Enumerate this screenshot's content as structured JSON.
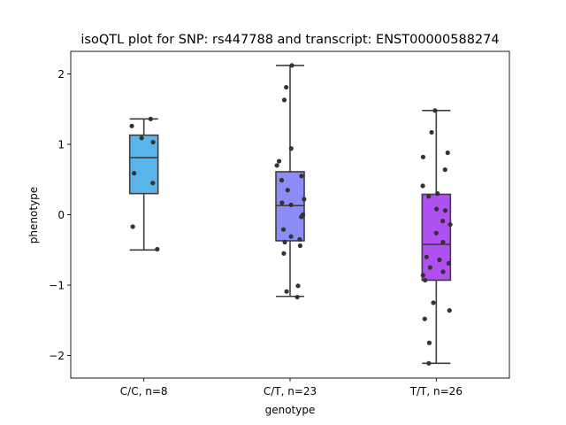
{
  "chart_data": {
    "type": "box",
    "title": "isoQTL plot for SNP: rs447788 and transcript: ENST00000588274",
    "xlabel": "genotype",
    "ylabel": "phenotype",
    "ylim": [
      -2.32,
      2.32
    ],
    "yticks": [
      {
        "value": 2,
        "label": "2"
      },
      {
        "value": 1,
        "label": "1"
      },
      {
        "value": 0,
        "label": "0"
      },
      {
        "value": -1,
        "label": "−1"
      },
      {
        "value": -2,
        "label": "−2"
      }
    ],
    "categories": [
      "C/C, n=8",
      "C/T, n=23",
      "T/T, n=26"
    ],
    "boxes": [
      {
        "color": "#5ab4ec",
        "whisker_low": -0.5,
        "q1": 0.3,
        "median": 0.81,
        "q3": 1.13,
        "whisker_high": 1.36,
        "points": [
          1.36,
          1.26,
          1.09,
          1.03,
          0.59,
          0.45,
          -0.17,
          -0.49
        ]
      },
      {
        "color": "#8c8cf6",
        "whisker_low": -1.16,
        "q1": -0.37,
        "median": 0.13,
        "q3": 0.61,
        "whisker_high": 2.12,
        "points": [
          2.12,
          1.81,
          1.63,
          0.94,
          0.76,
          0.7,
          0.55,
          0.49,
          0.35,
          0.22,
          0.17,
          0.14,
          0.0,
          -0.03,
          -0.21,
          -0.31,
          -0.35,
          -0.39,
          -0.44,
          -0.55,
          -1.01,
          -1.09,
          -1.17
        ]
      },
      {
        "color": "#b150f0",
        "whisker_low": -2.11,
        "q1": -0.93,
        "median": -0.42,
        "q3": 0.29,
        "whisker_high": 1.48,
        "points": [
          1.48,
          1.17,
          0.88,
          0.82,
          0.64,
          0.41,
          0.3,
          0.26,
          0.08,
          0.06,
          -0.09,
          -0.14,
          -0.26,
          -0.39,
          -0.6,
          -0.64,
          -0.69,
          -0.75,
          -0.81,
          -0.86,
          -0.93,
          -1.25,
          -1.36,
          -1.48,
          -1.82,
          -2.11
        ]
      }
    ],
    "grid": false,
    "legend": "none"
  }
}
